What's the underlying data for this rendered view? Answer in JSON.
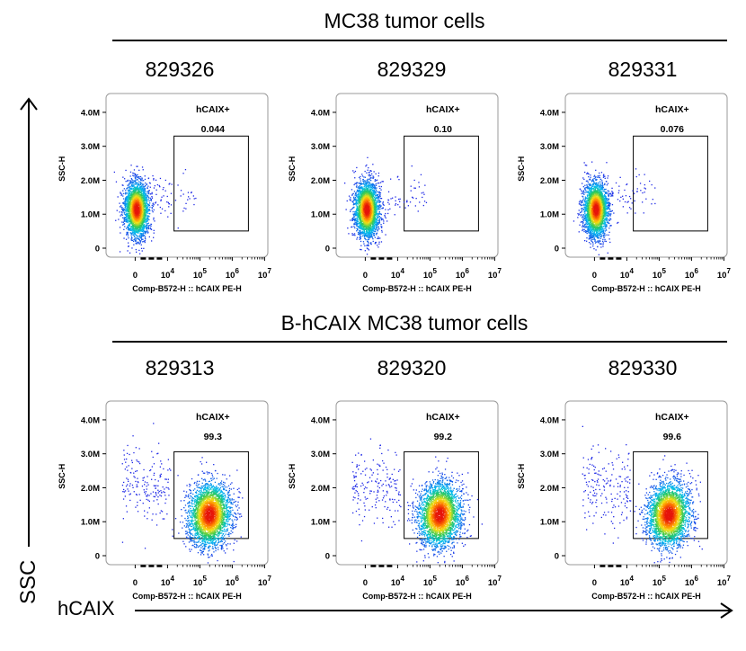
{
  "figure": {
    "y_axis_label": "SSC",
    "x_axis_label": "hCAIX"
  },
  "groups": [
    {
      "title": "MC38 tumor cells"
    },
    {
      "title": "B-hCAIX MC38 tumor cells"
    }
  ],
  "chart_data": [
    {
      "type": "scatter",
      "sample_id": "829326",
      "group": "MC38 tumor cells",
      "gate_label": "hCAIX+",
      "gate_value": "0.044",
      "population": "negative",
      "xlabel": "Comp-B572-H :: hCAIX PE-H",
      "ylabel": "SSC-H",
      "yticks": [
        "0",
        "1.0M",
        "2.0M",
        "3.0M",
        "4.0M"
      ],
      "xticks": [
        "0",
        "10^4",
        "10^5",
        "10^6",
        "10^7"
      ]
    },
    {
      "type": "scatter",
      "sample_id": "829329",
      "group": "MC38 tumor cells",
      "gate_label": "hCAIX+",
      "gate_value": "0.10",
      "population": "negative",
      "xlabel": "Comp-B572-H :: hCAIX PE-H",
      "ylabel": "SSC-H",
      "yticks": [
        "0",
        "1.0M",
        "2.0M",
        "3.0M",
        "4.0M"
      ],
      "xticks": [
        "0",
        "10^4",
        "10^5",
        "10^6",
        "10^7"
      ]
    },
    {
      "type": "scatter",
      "sample_id": "829331",
      "group": "MC38 tumor cells",
      "gate_label": "hCAIX+",
      "gate_value": "0.076",
      "population": "negative",
      "xlabel": "Comp-B572-H :: hCAIX PE-H",
      "ylabel": "SSC-H",
      "yticks": [
        "0",
        "1.0M",
        "2.0M",
        "3.0M",
        "4.0M"
      ],
      "xticks": [
        "0",
        "10^4",
        "10^5",
        "10^6",
        "10^7"
      ]
    },
    {
      "type": "scatter",
      "sample_id": "829313",
      "group": "B-hCAIX MC38 tumor cells",
      "gate_label": "hCAIX+",
      "gate_value": "99.3",
      "population": "positive",
      "xlabel": "Comp-B572-H :: hCAIX PE-H",
      "ylabel": "SSC-H",
      "yticks": [
        "0",
        "1.0M",
        "2.0M",
        "3.0M",
        "4.0M"
      ],
      "xticks": [
        "0",
        "10^4",
        "10^5",
        "10^6",
        "10^7"
      ]
    },
    {
      "type": "scatter",
      "sample_id": "829320",
      "group": "B-hCAIX MC38 tumor cells",
      "gate_label": "hCAIX+",
      "gate_value": "99.2",
      "population": "positive",
      "xlabel": "Comp-B572-H :: hCAIX PE-H",
      "ylabel": "SSC-H",
      "yticks": [
        "0",
        "1.0M",
        "2.0M",
        "3.0M",
        "4.0M"
      ],
      "xticks": [
        "0",
        "10^4",
        "10^5",
        "10^6",
        "10^7"
      ]
    },
    {
      "type": "scatter",
      "sample_id": "829330",
      "group": "B-hCAIX MC38 tumor cells",
      "gate_label": "hCAIX+",
      "gate_value": "99.6",
      "population": "positive",
      "xlabel": "Comp-B572-H :: hCAIX PE-H",
      "ylabel": "SSC-H",
      "yticks": [
        "0",
        "1.0M",
        "2.0M",
        "3.0M",
        "4.0M"
      ],
      "xticks": [
        "0",
        "10^4",
        "10^5",
        "10^6",
        "10^7"
      ]
    }
  ]
}
